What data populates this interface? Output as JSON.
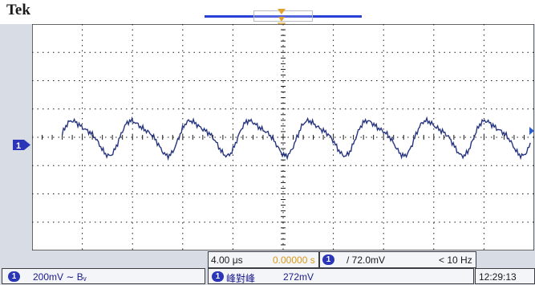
{
  "header": {
    "brand": "Tek"
  },
  "channel": {
    "marker": "1"
  },
  "waveform": {
    "color": "#27357f",
    "cycles": 8,
    "trace_start_fraction": 0.06
  },
  "status": {
    "timebase": "4.00 μs",
    "trigger_position": "0.00000 s",
    "trigger_channel": "1",
    "trigger_level": "/ 72.0mV",
    "frequency": "< 10 Hz",
    "ch1_badge": "1",
    "ch1_scale": "200mV ∼ Bᵥ",
    "measure_badge": "1",
    "measure_label": "峰對峰",
    "measure_value": "272mV",
    "clock": "12:29:13"
  },
  "colors": {
    "accent": "#2a35b8",
    "trigger": "#e3a12a",
    "grid": "#1a1a1a",
    "screen": "#ffffff"
  }
}
